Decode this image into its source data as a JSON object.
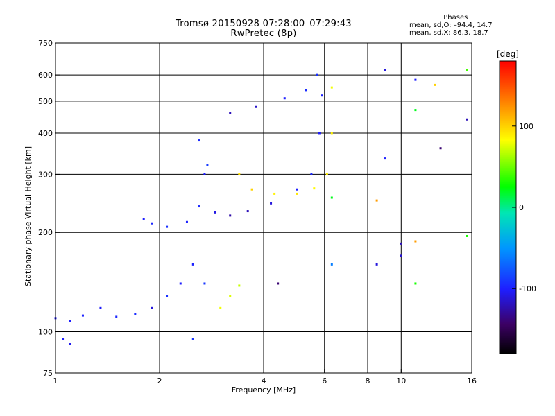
{
  "title": {
    "line1": "Tromsø 20150928 07:28:00–07:29:43",
    "line2": "RwPretec (8p)"
  },
  "stats": {
    "heading": "Phases",
    "line1": "mean, sd,O:  –94.4, 14.7",
    "line2": "mean, sd,X:  86.3, 18.7"
  },
  "chart_data": {
    "type": "scatter",
    "xlabel": "Frequency [MHz]",
    "ylabel": "Stationary phase Virtual Height [km]",
    "xscale": "log",
    "yscale": "log",
    "xlim": [
      1,
      16
    ],
    "ylim": [
      75,
      750
    ],
    "xticks": [
      1,
      2,
      4,
      6,
      8,
      10,
      16
    ],
    "xtick_labels": [
      "1",
      "2",
      "4",
      "6",
      "8",
      "10",
      "16"
    ],
    "yticks": [
      75,
      100,
      200,
      300,
      400,
      500,
      600,
      750
    ],
    "ytick_labels": [
      "75",
      "100",
      "200",
      "300",
      "400",
      "500",
      "600",
      "750"
    ],
    "grid": true,
    "colorbar": {
      "label": "[deg]",
      "range": [
        -180,
        180
      ],
      "ticks": [
        100,
        0,
        -100
      ],
      "tick_labels": [
        "100",
        "0",
        "-100"
      ]
    },
    "series": [
      {
        "values": [
          {
            "x": 1.0,
            "y": 110,
            "phase": -105
          },
          {
            "x": 1.1,
            "y": 108,
            "phase": -100
          },
          {
            "x": 1.2,
            "y": 112,
            "phase": -98
          },
          {
            "x": 1.35,
            "y": 118,
            "phase": -102
          },
          {
            "x": 1.5,
            "y": 111,
            "phase": -96
          },
          {
            "x": 1.7,
            "y": 113,
            "phase": -94
          },
          {
            "x": 1.9,
            "y": 118,
            "phase": -110
          },
          {
            "x": 2.1,
            "y": 128,
            "phase": -92
          },
          {
            "x": 2.3,
            "y": 140,
            "phase": -100
          },
          {
            "x": 2.5,
            "y": 160,
            "phase": -98
          },
          {
            "x": 2.7,
            "y": 140,
            "phase": -90
          },
          {
            "x": 1.8,
            "y": 220,
            "phase": -100
          },
          {
            "x": 1.9,
            "y": 213,
            "phase": -96
          },
          {
            "x": 2.1,
            "y": 208,
            "phase": -92
          },
          {
            "x": 2.4,
            "y": 215,
            "phase": -98
          },
          {
            "x": 2.6,
            "y": 240,
            "phase": -95
          },
          {
            "x": 2.7,
            "y": 300,
            "phase": -100
          },
          {
            "x": 2.6,
            "y": 380,
            "phase": -95
          },
          {
            "x": 2.75,
            "y": 320,
            "phase": -88
          },
          {
            "x": 2.9,
            "y": 230,
            "phase": -108
          },
          {
            "x": 3.2,
            "y": 225,
            "phase": -125
          },
          {
            "x": 3.6,
            "y": 232,
            "phase": -120
          },
          {
            "x": 4.2,
            "y": 245,
            "phase": -110
          },
          {
            "x": 5.0,
            "y": 270,
            "phase": -100
          },
          {
            "x": 5.5,
            "y": 300,
            "phase": -96
          },
          {
            "x": 5.8,
            "y": 400,
            "phase": -102
          },
          {
            "x": 5.9,
            "y": 520,
            "phase": -98
          },
          {
            "x": 5.7,
            "y": 600,
            "phase": -92
          },
          {
            "x": 3.2,
            "y": 460,
            "phase": -120
          },
          {
            "x": 3.8,
            "y": 480,
            "phase": -115
          },
          {
            "x": 4.6,
            "y": 510,
            "phase": -100
          },
          {
            "x": 5.3,
            "y": 540,
            "phase": -94
          },
          {
            "x": 3.4,
            "y": 300,
            "phase": 95
          },
          {
            "x": 3.7,
            "y": 270,
            "phase": 100
          },
          {
            "x": 4.3,
            "y": 262,
            "phase": 88
          },
          {
            "x": 5.0,
            "y": 262,
            "phase": 92
          },
          {
            "x": 5.6,
            "y": 272,
            "phase": 85
          },
          {
            "x": 6.1,
            "y": 300,
            "phase": 90
          },
          {
            "x": 6.3,
            "y": 400,
            "phase": 88
          },
          {
            "x": 6.3,
            "y": 550,
            "phase": 80
          },
          {
            "x": 3.0,
            "y": 118,
            "phase": 80
          },
          {
            "x": 3.2,
            "y": 128,
            "phase": 75
          },
          {
            "x": 3.4,
            "y": 138,
            "phase": 70
          },
          {
            "x": 9.0,
            "y": 620,
            "phase": -110
          },
          {
            "x": 11.0,
            "y": 580,
            "phase": -100
          },
          {
            "x": 11.0,
            "y": 470,
            "phase": 20
          },
          {
            "x": 12.5,
            "y": 560,
            "phase": 100
          },
          {
            "x": 15.5,
            "y": 620,
            "phase": 40
          },
          {
            "x": 15.5,
            "y": 440,
            "phase": -120
          },
          {
            "x": 13.0,
            "y": 360,
            "phase": -140
          },
          {
            "x": 9.0,
            "y": 335,
            "phase": -100
          },
          {
            "x": 10.0,
            "y": 185,
            "phase": -120
          },
          {
            "x": 10.0,
            "y": 170,
            "phase": -115
          },
          {
            "x": 11.0,
            "y": 188,
            "phase": 120
          },
          {
            "x": 11.0,
            "y": 140,
            "phase": 30
          },
          {
            "x": 8.5,
            "y": 160,
            "phase": -110
          },
          {
            "x": 8.5,
            "y": 250,
            "phase": 120
          },
          {
            "x": 15.5,
            "y": 195,
            "phase": 30
          },
          {
            "x": 4.4,
            "y": 140,
            "phase": -140
          },
          {
            "x": 6.3,
            "y": 255,
            "phase": 20
          },
          {
            "x": 6.3,
            "y": 160,
            "phase": -60
          },
          {
            "x": 2.5,
            "y": 95,
            "phase": -90
          },
          {
            "x": 1.05,
            "y": 95,
            "phase": -100
          },
          {
            "x": 1.1,
            "y": 92,
            "phase": -105
          }
        ]
      }
    ]
  }
}
